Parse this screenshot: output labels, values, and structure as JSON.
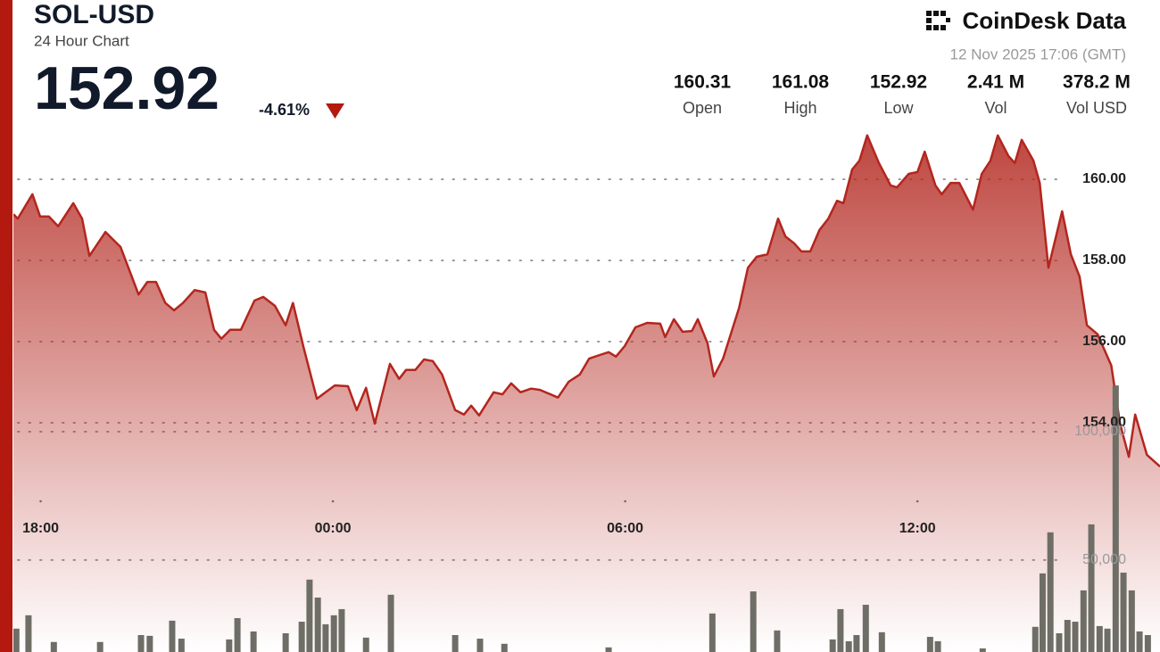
{
  "header": {
    "symbol": "SOL-USD",
    "subtitle": "24 Hour Chart",
    "price": "152.92",
    "change": "-4.61%",
    "brand": "CoinDesk Data",
    "timestamp": "12 Nov 2025 17:06 (GMT)",
    "stats": [
      {
        "value": "160.31",
        "label": "Open"
      },
      {
        "value": "161.08",
        "label": "High"
      },
      {
        "value": "152.92",
        "label": "Low"
      },
      {
        "value": "2.41 M",
        "label": "Vol"
      },
      {
        "value": "378.2 M",
        "label": "Vol USD"
      }
    ]
  },
  "chart_data": {
    "type": "line",
    "series": [
      {
        "type": "line",
        "color": "#b3261e",
        "x": [
          17.44,
          17.53,
          17.83,
          17.99,
          18.17,
          18.36,
          18.67,
          18.85,
          19.0,
          19.33,
          19.64,
          20.01,
          20.19,
          20.37,
          20.56,
          20.74,
          20.92,
          21.16,
          21.38,
          21.56,
          21.71,
          21.89,
          22.11,
          22.39,
          22.57,
          22.81,
          23.03,
          23.18,
          23.4,
          23.67,
          23.85,
          24.04,
          24.31,
          24.49,
          24.68,
          24.86,
          25.17,
          25.36,
          25.5,
          25.69,
          25.87,
          26.05,
          26.24,
          26.51,
          26.69,
          26.84,
          27.0,
          27.3,
          27.48,
          27.66,
          27.85,
          28.07,
          28.25,
          28.62,
          28.84,
          29.07,
          29.26,
          29.48,
          29.66,
          29.81,
          29.99,
          30.21,
          30.45,
          30.72,
          30.82,
          31.0,
          31.18,
          31.37,
          31.49,
          31.69,
          31.82,
          32.01,
          32.34,
          32.52,
          32.7,
          32.92,
          33.14,
          33.29,
          33.47,
          33.62,
          33.8,
          33.99,
          34.17,
          34.35,
          34.48,
          34.66,
          34.81,
          34.97,
          35.21,
          35.45,
          35.58,
          35.82,
          36.0,
          36.15,
          36.37,
          36.5,
          36.68,
          36.86,
          37.14,
          37.32,
          37.5,
          37.65,
          37.87,
          38.0,
          38.14,
          38.38,
          38.51,
          38.69,
          38.97,
          39.15,
          39.33,
          39.48,
          39.7,
          39.98,
          40.16,
          40.34,
          40.47,
          40.71,
          40.98
        ],
        "values": [
          159.14,
          159.03,
          159.63,
          159.08,
          159.08,
          158.84,
          159.41,
          159.03,
          158.11,
          158.7,
          158.33,
          157.16,
          157.47,
          157.47,
          156.95,
          156.77,
          156.95,
          157.27,
          157.21,
          156.29,
          156.07,
          156.29,
          156.29,
          157.01,
          157.1,
          156.88,
          156.4,
          156.95,
          155.85,
          154.59,
          154.75,
          154.92,
          154.9,
          154.31,
          154.86,
          153.98,
          155.45,
          155.08,
          155.3,
          155.3,
          155.56,
          155.52,
          155.19,
          154.31,
          154.2,
          154.42,
          154.18,
          154.75,
          154.7,
          154.97,
          154.75,
          154.84,
          154.81,
          154.62,
          155.01,
          155.19,
          155.58,
          155.67,
          155.74,
          155.63,
          155.89,
          156.35,
          156.46,
          156.44,
          156.11,
          156.55,
          156.24,
          156.26,
          156.55,
          155.96,
          155.14,
          155.58,
          156.84,
          157.82,
          158.09,
          158.15,
          159.03,
          158.59,
          158.42,
          158.22,
          158.22,
          158.75,
          159.03,
          159.47,
          159.41,
          160.24,
          160.46,
          161.08,
          160.4,
          159.85,
          159.8,
          160.13,
          160.18,
          160.68,
          159.85,
          159.63,
          159.91,
          159.91,
          159.25,
          160.13,
          160.46,
          161.08,
          160.57,
          160.4,
          160.97,
          160.46,
          159.91,
          157.82,
          159.21,
          158.15,
          157.6,
          156.4,
          156.18,
          155.41,
          153.98,
          153.16,
          154.2,
          153.21,
          152.92
        ]
      },
      {
        "type": "bar",
        "color": "#6e6e66",
        "axis": "y2",
        "x": [
          17.5,
          17.75,
          18.27,
          19.22,
          20.06,
          20.24,
          20.7,
          20.89,
          21.87,
          22.04,
          22.37,
          23.03,
          23.36,
          23.52,
          23.69,
          23.85,
          24.02,
          24.18,
          24.68,
          25.19,
          26.51,
          27.02,
          27.52,
          29.66,
          31.79,
          32.63,
          33.12,
          34.26,
          34.42,
          34.59,
          34.75,
          34.94,
          35.27,
          36.26,
          36.42,
          37.34,
          38.42,
          38.57,
          38.73,
          38.91,
          39.08,
          39.24,
          39.41,
          39.57,
          39.74,
          39.9,
          40.07,
          40.23,
          40.4,
          40.56,
          40.73
        ],
        "values": [
          23300,
          28500,
          18100,
          18100,
          20800,
          20500,
          26400,
          19400,
          19100,
          27400,
          22200,
          21500,
          26000,
          42400,
          35400,
          25000,
          28500,
          30900,
          19800,
          36500,
          20800,
          19400,
          17400,
          16000,
          29200,
          37800,
          22600,
          19100,
          30900,
          18400,
          20800,
          32600,
          21900,
          20100,
          18400,
          15600,
          24000,
          44800,
          60800,
          21500,
          26700,
          26000,
          38200,
          63900,
          24300,
          23300,
          118000,
          45100,
          38200,
          22200,
          20800
        ]
      }
    ],
    "xlim": [
      17.44,
      40.98
    ],
    "xticks": [
      {
        "value": 18,
        "label": "18:00"
      },
      {
        "value": 24,
        "label": "00:00"
      },
      {
        "value": 30,
        "label": "06:00"
      },
      {
        "value": 36,
        "label": "12:00"
      }
    ],
    "ylim": [
      148.35,
      161.12
    ],
    "yticks": [
      {
        "value": 154,
        "label": "154.00"
      },
      {
        "value": 156,
        "label": "156.00"
      },
      {
        "value": 158,
        "label": "158.00"
      },
      {
        "value": 160,
        "label": "160.00"
      }
    ],
    "y2lim": [
      14200,
      216000
    ],
    "y2ticks": [
      {
        "value": 50000,
        "label": "50,000"
      },
      {
        "value": 100000,
        "label": "100,000"
      }
    ],
    "grid": true
  }
}
